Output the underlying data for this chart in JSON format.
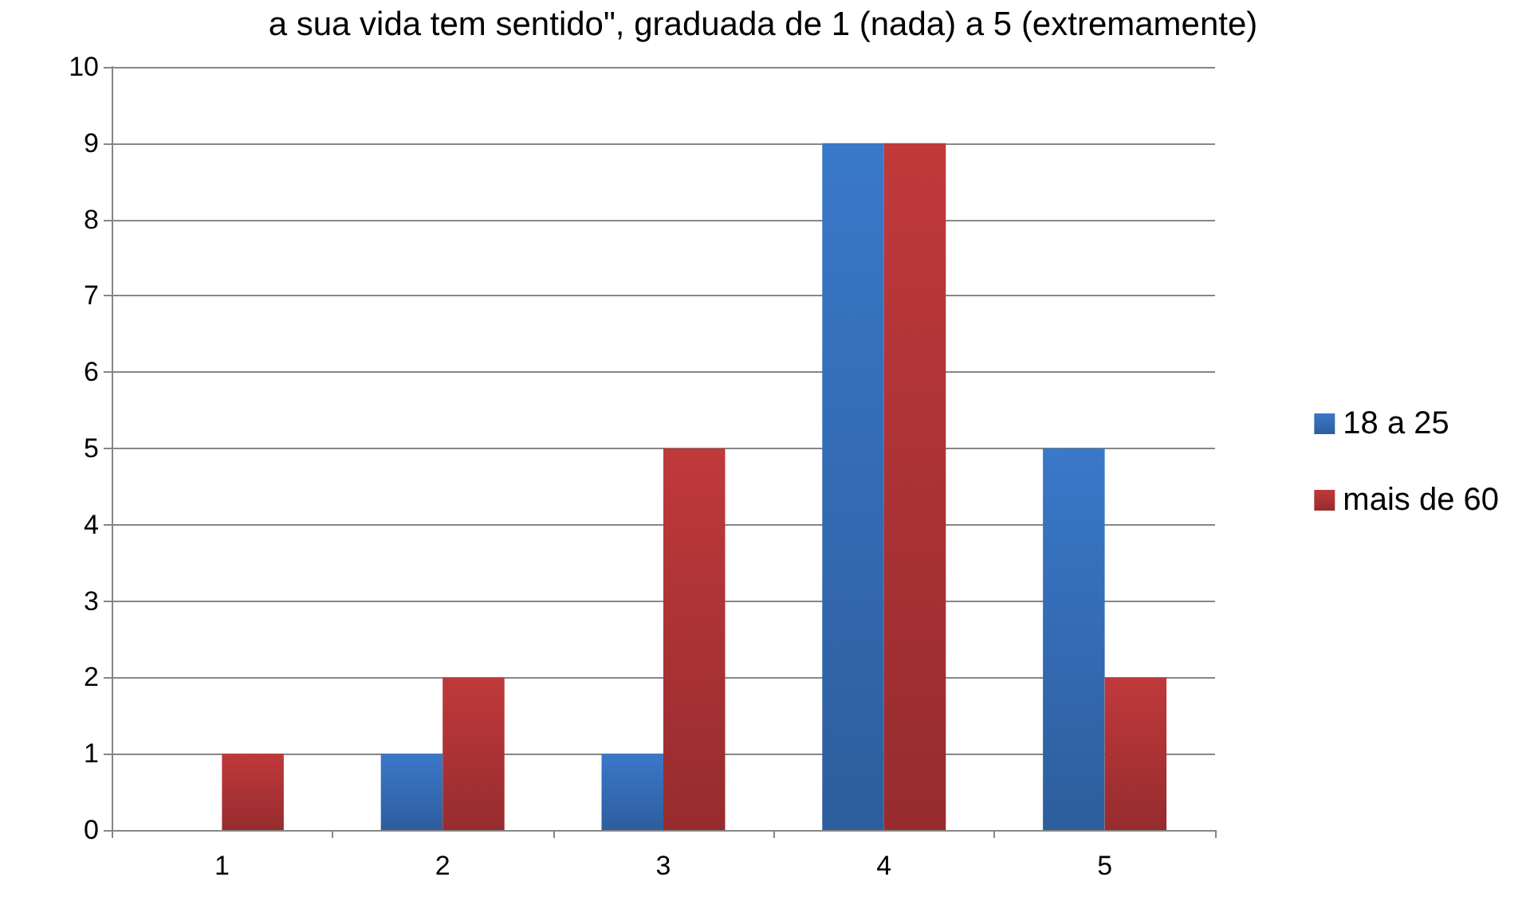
{
  "chart_data": {
    "type": "bar",
    "title": "a sua vida tem sentido\", graduada de 1 (nada) a 5 (extremamente)",
    "categories": [
      "1",
      "2",
      "3",
      "4",
      "5"
    ],
    "series": [
      {
        "name": "18 a 25",
        "color": "#3a78c9",
        "values": [
          0,
          1,
          1,
          9,
          5
        ]
      },
      {
        "name": "mais de 60",
        "color": "#c0393b",
        "values": [
          1,
          2,
          5,
          9,
          2
        ]
      }
    ],
    "ylim": [
      0,
      10
    ],
    "yticks": [
      0,
      1,
      2,
      3,
      4,
      5,
      6,
      7,
      8,
      9,
      10
    ],
    "grid": "y",
    "legend": "right"
  }
}
